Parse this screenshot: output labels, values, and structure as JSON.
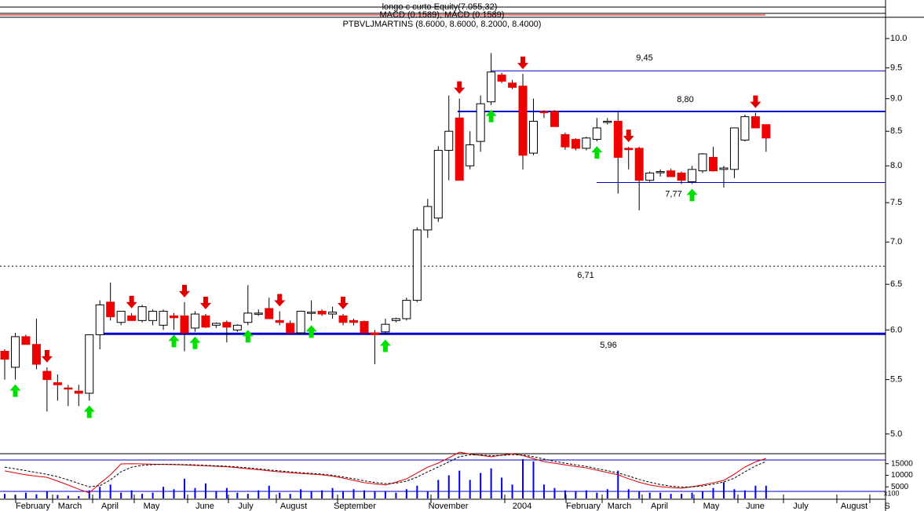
{
  "chart_data": {
    "type": "candlestick",
    "header": [
      "longo c curto Equity(7.055,32)",
      "MACD (0.1589), MACD (0.1589)",
      "PTBVLJMARTINS (8.6000, 8.6000, 8.2000, 8.4000)"
    ],
    "open": [
      5.78,
      5.62,
      5.93,
      5.85,
      5.58,
      5.47,
      5.42,
      5.39,
      5.37,
      5.95,
      6.3,
      6.08,
      6.15,
      6.1,
      6.1,
      6.05,
      6.15,
      6.15,
      6.02,
      6.15,
      6.05,
      6.08,
      6.0,
      6.08,
      6.18,
      6.23,
      6.1,
      6.07,
      5.97,
      6.18,
      6.2,
      6.17,
      6.15,
      6.1,
      6.09,
      5.97,
      5.98,
      6.1,
      6.12,
      6.32,
      7.15,
      7.3,
      8.22,
      8.7,
      8.0,
      8.35,
      8.95,
      9.38,
      9.25,
      9.2,
      8.18,
      8.8,
      8.8,
      8.45,
      8.38,
      8.25,
      8.38,
      8.65,
      8.65,
      8.25,
      8.25,
      7.8,
      7.92,
      7.93,
      7.9,
      7.78,
      7.93,
      8.12,
      7.95,
      7.95,
      8.37,
      8.72,
      8.6
    ],
    "high": [
      5.8,
      5.97,
      5.95,
      6.12,
      5.62,
      5.55,
      5.45,
      5.45,
      5.95,
      6.32,
      6.52,
      6.2,
      6.18,
      6.27,
      6.22,
      6.22,
      6.18,
      6.3,
      6.2,
      6.17,
      6.08,
      6.1,
      6.06,
      6.49,
      6.22,
      6.35,
      6.2,
      6.1,
      6.2,
      6.32,
      6.22,
      6.25,
      6.17,
      6.12,
      6.1,
      6.0,
      6.12,
      6.13,
      6.35,
      7.18,
      7.55,
      8.28,
      9.05,
      9.0,
      8.5,
      9.05,
      9.75,
      9.42,
      9.3,
      9.4,
      9.0,
      8.82,
      8.82,
      8.48,
      8.4,
      8.42,
      8.7,
      8.7,
      8.8,
      8.27,
      8.27,
      7.92,
      7.95,
      7.96,
      7.92,
      8.0,
      8.18,
      8.27,
      8.0,
      8.55,
      8.75,
      8.78,
      8.6
    ],
    "low": [
      5.5,
      5.5,
      5.85,
      5.6,
      5.2,
      5.3,
      5.25,
      5.25,
      5.3,
      5.8,
      6.1,
      6.05,
      6.1,
      6.08,
      6.05,
      6.0,
      6.0,
      5.78,
      5.98,
      6.02,
      6.02,
      5.87,
      5.98,
      6.05,
      6.15,
      6.12,
      6.05,
      5.97,
      5.95,
      6.1,
      6.15,
      6.12,
      6.05,
      6.05,
      5.96,
      5.65,
      5.95,
      6.08,
      6.1,
      6.3,
      7.05,
      7.25,
      7.8,
      7.8,
      7.95,
      8.2,
      8.9,
      9.25,
      9.15,
      7.95,
      8.15,
      8.7,
      8.57,
      8.23,
      8.22,
      8.22,
      8.35,
      8.6,
      7.62,
      7.95,
      7.4,
      7.78,
      7.85,
      7.85,
      7.75,
      7.75,
      7.9,
      7.92,
      7.7,
      7.83,
      8.35,
      8.55,
      8.2
    ],
    "close": [
      5.7,
      5.93,
      5.85,
      5.65,
      5.5,
      5.45,
      5.41,
      5.37,
      5.95,
      6.27,
      6.14,
      6.2,
      6.1,
      6.25,
      6.2,
      6.2,
      6.13,
      5.97,
      6.17,
      6.03,
      6.07,
      6.03,
      6.05,
      6.18,
      6.18,
      6.12,
      6.08,
      5.97,
      6.2,
      6.19,
      6.17,
      6.19,
      6.08,
      6.08,
      5.97,
      5.95,
      6.06,
      6.12,
      6.32,
      7.15,
      7.45,
      8.22,
      8.5,
      7.8,
      8.3,
      8.92,
      9.43,
      9.28,
      9.18,
      8.15,
      8.65,
      8.78,
      8.57,
      8.27,
      8.25,
      8.4,
      8.55,
      8.65,
      8.12,
      8.23,
      7.8,
      7.9,
      7.92,
      7.85,
      7.8,
      7.95,
      8.17,
      7.93,
      7.97,
      8.55,
      8.72,
      8.55,
      8.4
    ],
    "ylim": [
      4.85,
      10.38
    ],
    "log_scale": true,
    "yticks": [
      {
        "value": 5,
        "label": "5.0"
      },
      5.5,
      {
        "value": 6,
        "label": "6.0"
      },
      6.5,
      {
        "value": 7,
        "label": "7.0"
      },
      7.5,
      {
        "value": 8,
        "label": "8.0"
      },
      8.5,
      {
        "value": 9,
        "label": "9.0"
      },
      9.5,
      {
        "value": 10,
        "label": "10.0"
      }
    ],
    "levels": [
      {
        "value": 9.45,
        "label": "9,45"
      },
      {
        "value": 8.8,
        "label": "8,80"
      },
      {
        "value": 7.77,
        "label": "7,77"
      },
      {
        "value": 6.71,
        "label": "6,71"
      },
      {
        "value": 5.96,
        "label": "5,96"
      }
    ],
    "x_labels": [
      "February",
      "March",
      "April",
      "May",
      "June",
      "July",
      "August",
      "September",
      "November",
      "2004",
      "February",
      "March",
      "April",
      "May",
      "June",
      "July",
      "August",
      "S"
    ],
    "volume": [
      2000,
      1500,
      2500,
      1800,
      3000,
      1500,
      1200,
      1000,
      3500,
      5000,
      6000,
      2500,
      3500,
      2000,
      2500,
      5000,
      4000,
      8500,
      4500,
      6500,
      3000,
      4500,
      2500,
      2000,
      3500,
      5500,
      2500,
      2000,
      4000,
      3000,
      3500,
      4500,
      3000,
      4000,
      3500,
      3000,
      3000,
      2500,
      4000,
      5500,
      3000,
      8000,
      10000,
      12000,
      8000,
      11000,
      13000,
      9000,
      6000,
      17000,
      16000,
      6000,
      4500,
      3500,
      3000,
      3500,
      2500,
      4000,
      12000,
      4000,
      3000,
      2500,
      2500,
      2000,
      2000,
      2500,
      3000,
      4500,
      7000,
      4000,
      3500,
      5500,
      5500
    ],
    "volume_color": "#0000ee",
    "volume_ylim": [
      0,
      20000
    ],
    "volume_yticks": [
      5000,
      10000,
      15000
    ],
    "volume_unit_label": "x100",
    "oscillator": [
      {
        "color": "#e00000",
        "dashed": false,
        "values": [
          11900,
          11000,
          10200,
          9600,
          9100,
          7500,
          5800,
          4000,
          2400,
          6500,
          10200,
          14900,
          15000,
          14900,
          14800,
          14700,
          14600,
          14500,
          14300,
          14100,
          13900,
          13700,
          13300,
          12800,
          12400,
          11900,
          11500,
          11100,
          10800,
          10500,
          10200,
          9600,
          8800,
          7800,
          6800,
          6300,
          5800,
          7000,
          8500,
          11000,
          13500,
          15300,
          17500,
          20000,
          19200,
          18600,
          18000,
          18700,
          19300,
          18500,
          17200,
          15900,
          15200,
          14500,
          13800,
          13200,
          12200,
          11200,
          10200,
          8500,
          7000,
          5800,
          5100,
          4700,
          4400,
          5100,
          5800,
          6800,
          7800,
          10500,
          13600,
          15800,
          17300
        ]
      },
      {
        "color": "#000000",
        "dashed": true,
        "values": [
          13500,
          12800,
          12000,
          11200,
          10400,
          9400,
          8000,
          6500,
          5000,
          5500,
          8000,
          11500,
          13500,
          14300,
          14600,
          14700,
          14700,
          14600,
          14500,
          14300,
          14100,
          13900,
          13600,
          13200,
          12800,
          12300,
          11900,
          11500,
          11100,
          10800,
          10500,
          10000,
          9300,
          8500,
          7600,
          6900,
          6400,
          6600,
          7500,
          9200,
          11500,
          13600,
          15800,
          18000,
          18800,
          18800,
          18500,
          18600,
          18900,
          18800,
          18000,
          17000,
          16000,
          15200,
          14500,
          13800,
          12900,
          12000,
          11000,
          9700,
          8200,
          7000,
          6000,
          5300,
          4900,
          5000,
          5400,
          6200,
          7100,
          8800,
          11500,
          14000,
          16000
        ]
      }
    ],
    "up_color": "#ffffff",
    "down_color": "#ee0000"
  }
}
